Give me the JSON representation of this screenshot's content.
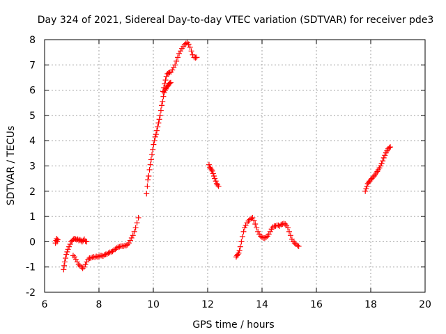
{
  "chart_data": {
    "type": "scatter",
    "title": "Day 324 of 2021, Sidereal Day-to-day VTEC variation (SDTVAR) for receiver pde3",
    "xlabel": "GPS time / hours",
    "ylabel": "SDTVAR / TECUs",
    "xlim": [
      6,
      20
    ],
    "ylim": [
      -2,
      8
    ],
    "x_ticks": [
      "6",
      "8",
      "10",
      "12",
      "14",
      "16",
      "18",
      "20"
    ],
    "y_ticks": [
      "-2",
      "-1",
      "0",
      "1",
      "2",
      "3",
      "4",
      "5",
      "6",
      "7",
      "8"
    ],
    "grid": true,
    "marker": "+",
    "color": "#ff0000",
    "series": [
      {
        "name": "SDTVAR",
        "points": [
          [
            6.4,
            -0.05
          ],
          [
            6.42,
            0.05
          ],
          [
            6.44,
            0.12
          ],
          [
            6.46,
            0.0
          ],
          [
            6.48,
            0.08
          ],
          [
            6.7,
            -1.1
          ],
          [
            6.72,
            -0.95
          ],
          [
            6.74,
            -0.8
          ],
          [
            6.77,
            -0.65
          ],
          [
            6.8,
            -0.5
          ],
          [
            6.83,
            -0.4
          ],
          [
            6.86,
            -0.3
          ],
          [
            6.9,
            -0.2
          ],
          [
            6.94,
            -0.1
          ],
          [
            6.98,
            0.0
          ],
          [
            7.02,
            0.05
          ],
          [
            7.06,
            0.1
          ],
          [
            7.1,
            0.12
          ],
          [
            7.14,
            0.1
          ],
          [
            7.18,
            0.08
          ],
          [
            7.22,
            0.1
          ],
          [
            7.26,
            0.05
          ],
          [
            7.3,
            0.08
          ],
          [
            7.34,
            0.05
          ],
          [
            7.38,
            0.0
          ],
          [
            7.42,
            0.05
          ],
          [
            7.46,
            0.1
          ],
          [
            7.5,
            0.02
          ],
          [
            7.55,
            0.0
          ],
          [
            7.05,
            -0.55
          ],
          [
            7.1,
            -0.6
          ],
          [
            7.15,
            -0.7
          ],
          [
            7.2,
            -0.8
          ],
          [
            7.25,
            -0.9
          ],
          [
            7.3,
            -0.95
          ],
          [
            7.35,
            -1.0
          ],
          [
            7.4,
            -1.05
          ],
          [
            7.45,
            -1.0
          ],
          [
            7.5,
            -0.9
          ],
          [
            7.55,
            -0.8
          ],
          [
            7.6,
            -0.7
          ],
          [
            7.65,
            -0.65
          ],
          [
            7.7,
            -0.65
          ],
          [
            7.75,
            -0.62
          ],
          [
            7.8,
            -0.6
          ],
          [
            7.85,
            -0.62
          ],
          [
            7.9,
            -0.58
          ],
          [
            7.95,
            -0.6
          ],
          [
            8.0,
            -0.58
          ],
          [
            8.05,
            -0.55
          ],
          [
            8.1,
            -0.55
          ],
          [
            8.15,
            -0.57
          ],
          [
            8.2,
            -0.52
          ],
          [
            8.25,
            -0.5
          ],
          [
            8.3,
            -0.48
          ],
          [
            8.35,
            -0.45
          ],
          [
            8.4,
            -0.42
          ],
          [
            8.45,
            -0.4
          ],
          [
            8.5,
            -0.38
          ],
          [
            8.55,
            -0.33
          ],
          [
            8.6,
            -0.3
          ],
          [
            8.65,
            -0.25
          ],
          [
            8.7,
            -0.22
          ],
          [
            8.75,
            -0.2
          ],
          [
            8.8,
            -0.18
          ],
          [
            8.85,
            -0.17
          ],
          [
            8.9,
            -0.18
          ],
          [
            8.95,
            -0.15
          ],
          [
            9.0,
            -0.15
          ],
          [
            9.05,
            -0.12
          ],
          [
            9.1,
            -0.05
          ],
          [
            9.15,
            0.05
          ],
          [
            9.2,
            0.15
          ],
          [
            9.25,
            0.25
          ],
          [
            9.3,
            0.4
          ],
          [
            9.35,
            0.55
          ],
          [
            9.4,
            0.75
          ],
          [
            9.45,
            0.95
          ],
          [
            9.75,
            1.9
          ],
          [
            9.78,
            2.2
          ],
          [
            9.8,
            2.45
          ],
          [
            9.83,
            2.6
          ],
          [
            9.86,
            2.85
          ],
          [
            9.89,
            3.05
          ],
          [
            9.92,
            3.25
          ],
          [
            9.95,
            3.45
          ],
          [
            9.98,
            3.65
          ],
          [
            10.01,
            3.85
          ],
          [
            10.04,
            4.0
          ],
          [
            10.07,
            4.15
          ],
          [
            10.1,
            4.25
          ],
          [
            10.13,
            4.4
          ],
          [
            10.16,
            4.55
          ],
          [
            10.19,
            4.7
          ],
          [
            10.22,
            4.85
          ],
          [
            10.25,
            5.0
          ],
          [
            10.28,
            5.2
          ],
          [
            10.31,
            5.4
          ],
          [
            10.34,
            5.55
          ],
          [
            10.37,
            5.75
          ],
          [
            10.4,
            5.9
          ],
          [
            10.43,
            6.0
          ],
          [
            10.46,
            6.05
          ],
          [
            10.49,
            6.1
          ],
          [
            10.52,
            6.15
          ],
          [
            10.55,
            6.2
          ],
          [
            10.58,
            6.25
          ],
          [
            10.61,
            6.28
          ],
          [
            10.64,
            6.3
          ],
          [
            10.36,
            5.95
          ],
          [
            10.39,
            6.1
          ],
          [
            10.42,
            6.25
          ],
          [
            10.45,
            6.4
          ],
          [
            10.48,
            6.55
          ],
          [
            10.52,
            6.65
          ],
          [
            10.56,
            6.68
          ],
          [
            10.6,
            6.7
          ],
          [
            10.65,
            6.72
          ],
          [
            10.7,
            6.8
          ],
          [
            10.75,
            6.9
          ],
          [
            10.8,
            7.0
          ],
          [
            10.85,
            7.15
          ],
          [
            10.9,
            7.3
          ],
          [
            10.95,
            7.45
          ],
          [
            11.0,
            7.55
          ],
          [
            11.05,
            7.65
          ],
          [
            11.1,
            7.72
          ],
          [
            11.15,
            7.8
          ],
          [
            11.2,
            7.85
          ],
          [
            11.25,
            7.88
          ],
          [
            11.3,
            7.82
          ],
          [
            11.35,
            7.7
          ],
          [
            11.4,
            7.55
          ],
          [
            11.45,
            7.4
          ],
          [
            11.5,
            7.3
          ],
          [
            11.55,
            7.28
          ],
          [
            11.6,
            7.3
          ],
          [
            12.05,
            3.05
          ],
          [
            12.08,
            2.95
          ],
          [
            12.11,
            2.9
          ],
          [
            12.14,
            2.85
          ],
          [
            12.17,
            2.8
          ],
          [
            12.2,
            2.7
          ],
          [
            12.23,
            2.6
          ],
          [
            12.26,
            2.5
          ],
          [
            12.3,
            2.4
          ],
          [
            12.33,
            2.3
          ],
          [
            12.36,
            2.25
          ],
          [
            12.4,
            2.2
          ],
          [
            13.05,
            -0.6
          ],
          [
            13.08,
            -0.55
          ],
          [
            13.11,
            -0.5
          ],
          [
            13.14,
            -0.45
          ],
          [
            13.17,
            -0.35
          ],
          [
            13.2,
            -0.2
          ],
          [
            13.24,
            0.0
          ],
          [
            13.28,
            0.2
          ],
          [
            13.32,
            0.4
          ],
          [
            13.36,
            0.55
          ],
          [
            13.4,
            0.65
          ],
          [
            13.45,
            0.75
          ],
          [
            13.5,
            0.82
          ],
          [
            13.55,
            0.88
          ],
          [
            13.6,
            0.92
          ],
          [
            13.65,
            0.95
          ],
          [
            13.7,
            0.85
          ],
          [
            13.75,
            0.7
          ],
          [
            13.8,
            0.55
          ],
          [
            13.85,
            0.4
          ],
          [
            13.9,
            0.3
          ],
          [
            13.95,
            0.22
          ],
          [
            14.0,
            0.18
          ],
          [
            14.05,
            0.15
          ],
          [
            14.1,
            0.15
          ],
          [
            14.15,
            0.18
          ],
          [
            14.2,
            0.22
          ],
          [
            14.25,
            0.3
          ],
          [
            14.3,
            0.4
          ],
          [
            14.35,
            0.5
          ],
          [
            14.4,
            0.58
          ],
          [
            14.45,
            0.62
          ],
          [
            14.5,
            0.62
          ],
          [
            14.55,
            0.65
          ],
          [
            14.6,
            0.65
          ],
          [
            14.65,
            0.62
          ],
          [
            14.7,
            0.68
          ],
          [
            14.75,
            0.7
          ],
          [
            14.8,
            0.72
          ],
          [
            14.85,
            0.7
          ],
          [
            14.9,
            0.65
          ],
          [
            14.95,
            0.55
          ],
          [
            15.0,
            0.4
          ],
          [
            15.05,
            0.25
          ],
          [
            15.1,
            0.1
          ],
          [
            15.15,
            0.0
          ],
          [
            15.2,
            -0.05
          ],
          [
            15.25,
            -0.1
          ],
          [
            15.3,
            -0.15
          ],
          [
            15.35,
            -0.18
          ],
          [
            17.8,
            2.0
          ],
          [
            17.83,
            2.1
          ],
          [
            17.86,
            2.2
          ],
          [
            17.89,
            2.3
          ],
          [
            17.92,
            2.35
          ],
          [
            17.96,
            2.4
          ],
          [
            18.0,
            2.45
          ],
          [
            18.04,
            2.5
          ],
          [
            18.08,
            2.55
          ],
          [
            18.12,
            2.6
          ],
          [
            18.16,
            2.65
          ],
          [
            18.2,
            2.72
          ],
          [
            18.24,
            2.78
          ],
          [
            18.28,
            2.85
          ],
          [
            18.32,
            2.92
          ],
          [
            18.36,
            3.0
          ],
          [
            18.4,
            3.1
          ],
          [
            18.44,
            3.2
          ],
          [
            18.48,
            3.32
          ],
          [
            18.52,
            3.42
          ],
          [
            18.56,
            3.52
          ],
          [
            18.6,
            3.6
          ],
          [
            18.64,
            3.68
          ],
          [
            18.68,
            3.72
          ],
          [
            18.72,
            3.75
          ]
        ]
      }
    ]
  }
}
